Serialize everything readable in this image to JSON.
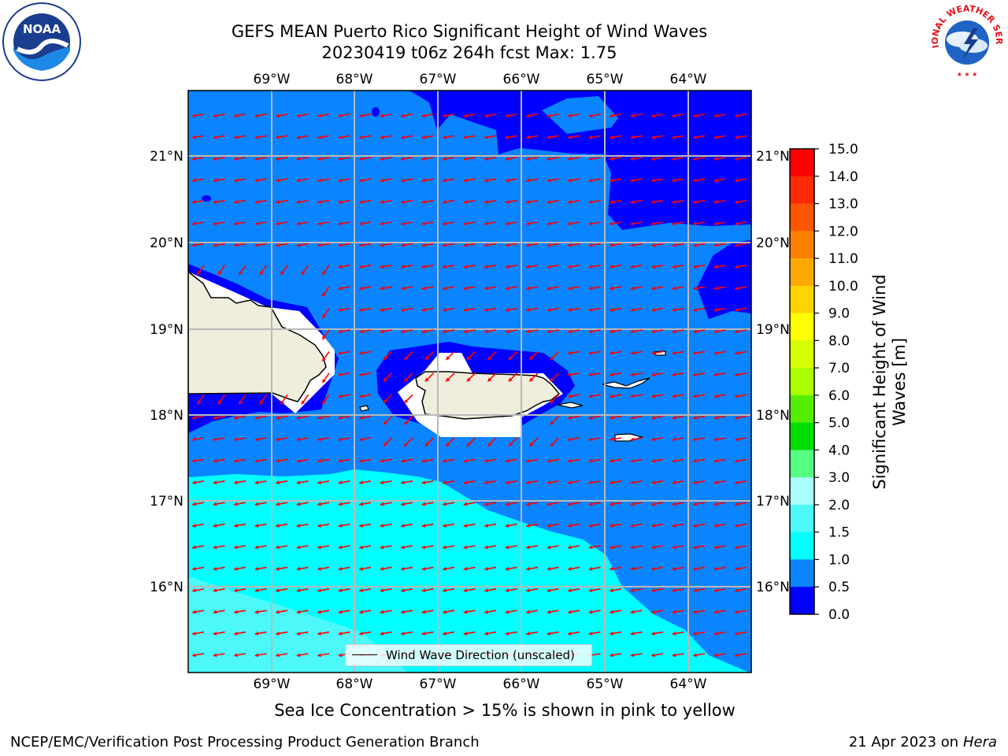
{
  "title": {
    "line1": "GEFS MEAN Puerto Rico Significant Height of Wind Waves",
    "line2": "20230419 t06z 264h fcst   Max: 1.75"
  },
  "logos": {
    "left": "NOAA",
    "right_lettering": "NATIONAL WEATHER SERVICE"
  },
  "map": {
    "region": "Puerto Rico",
    "lon_labels": [
      "69°W",
      "68°W",
      "67°W",
      "66°W",
      "65°W",
      "64°W"
    ],
    "lat_labels": [
      "21°N",
      "20°N",
      "19°N",
      "18°N",
      "17°N",
      "16°N"
    ],
    "land_color": "#efeddc",
    "arrow_color": "#ff0000",
    "zone_colors": {
      "0.0-0.5": "#0000ff",
      "0.5-1.0": "#0a84ff",
      "1.0-1.5": "#00ffff",
      "1.5-2.0": "#4cf8f8"
    }
  },
  "legend": {
    "label": "Wind Wave Direction (unscaled)"
  },
  "colorbar": {
    "label_line1": "Significant Height of Wind",
    "label_line2": "Waves [m]",
    "ticks": [
      "15.0",
      "14.0",
      "13.0",
      "12.0",
      "11.0",
      "10.0",
      "9.0",
      "8.0",
      "7.0",
      "6.0",
      "5.0",
      "4.0",
      "3.0",
      "2.0",
      "1.5",
      "1.0",
      "0.5",
      "0.0"
    ],
    "colors": [
      "#ff0000",
      "#ff2a00",
      "#ff5500",
      "#ff8000",
      "#ffaa00",
      "#ffd400",
      "#ffff00",
      "#d4ff00",
      "#aaff00",
      "#55ee00",
      "#00dd00",
      "#55ff80",
      "#aaffff",
      "#4cf8f8",
      "#00ffff",
      "#0a84ff",
      "#0000ff"
    ]
  },
  "subtitle": "Sea Ice Concentration > 15% is shown in pink to yellow",
  "footer": {
    "left": "NCEP/EMC/Verification Post Processing Product Generation Branch",
    "right_date": "21 Apr 2023 on ",
    "right_host": "Hera"
  }
}
